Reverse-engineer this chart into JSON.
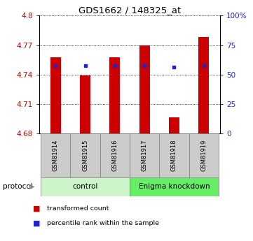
{
  "title": "GDS1662 / 148325_at",
  "samples": [
    "GSM81914",
    "GSM81915",
    "GSM81916",
    "GSM81917",
    "GSM81918",
    "GSM81919"
  ],
  "bar_values": [
    4.758,
    4.739,
    4.758,
    4.77,
    4.697,
    4.778
  ],
  "blue_values": [
    4.749,
    4.749,
    4.749,
    4.749,
    4.748,
    4.749
  ],
  "baseline": 4.68,
  "ylim_left": [
    4.68,
    4.8
  ],
  "yticks_left": [
    4.68,
    4.71,
    4.74,
    4.77,
    4.8
  ],
  "ytick_labels_left": [
    "4.68",
    "4.71",
    "4.74",
    "4.77",
    "4.8"
  ],
  "ylim_right": [
    0,
    100
  ],
  "yticks_right": [
    0,
    25,
    50,
    75,
    100
  ],
  "ytick_labels_right": [
    "0",
    "25",
    "50",
    "75",
    "100%"
  ],
  "bar_color": "#cc0000",
  "blue_color": "#2222cc",
  "left_tick_color": "#cc0000",
  "right_tick_color": "#2222cc",
  "protocol_groups": [
    {
      "label": "control",
      "start": 0,
      "end": 3,
      "color": "#ccf5cc"
    },
    {
      "label": "Enigma knockdown",
      "start": 3,
      "end": 6,
      "color": "#66ee66"
    }
  ],
  "protocol_label": "protocol",
  "legend_items": [
    {
      "label": "transformed count",
      "color": "#cc0000"
    },
    {
      "label": "percentile rank within the sample",
      "color": "#2222cc"
    }
  ],
  "bar_width": 0.35,
  "grid_color": "#000000",
  "sample_box_color": "#cccccc",
  "bg_color": "#ffffff"
}
